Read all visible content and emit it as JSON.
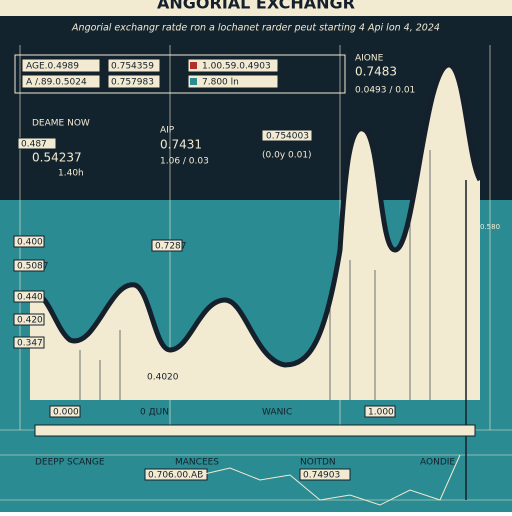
{
  "header": {
    "title": "ANGORIAL EXCHANGR",
    "subtitle": "Angorial exchangr ratde ron a lochanet rarder peut starting 4  Api lon 4, 2024"
  },
  "legend": {
    "rows": [
      [
        "AGE.0.4989",
        "0.754359",
        "1.00.59.0.4903"
      ],
      [
        "A /.89.0.5024",
        "0.757983",
        "7.800 ln"
      ]
    ]
  },
  "annotations": {
    "peak": {
      "label": "AIONE",
      "value": "0.7483",
      "note": "0.0493 / 0.01"
    },
    "left": {
      "label": "DEAME NOW",
      "box": "0.487",
      "value": "0.54237",
      "note": "1.40h"
    },
    "middle": {
      "label": "AIP",
      "value": "0.7431",
      "note": "1.06 / 0.03"
    },
    "right": {
      "box": "0.754003",
      "note": "(0.0y 0.01)"
    }
  },
  "side_labels": [
    "0.400",
    "0.5087",
    "0.440",
    "0.420",
    "0.347"
  ],
  "inner_labels": [
    "0.7287",
    "0.4020",
    "0.580"
  ],
  "timeline": [
    "0.000",
    "0 ДUN",
    "WANIC",
    "1.000"
  ],
  "footer": {
    "labels": [
      "DEEPP SCANGE",
      "MANCEES",
      "NOITDN",
      "AONDIE"
    ],
    "values": [
      "0.706.00.AB",
      "0.74903"
    ]
  }
}
